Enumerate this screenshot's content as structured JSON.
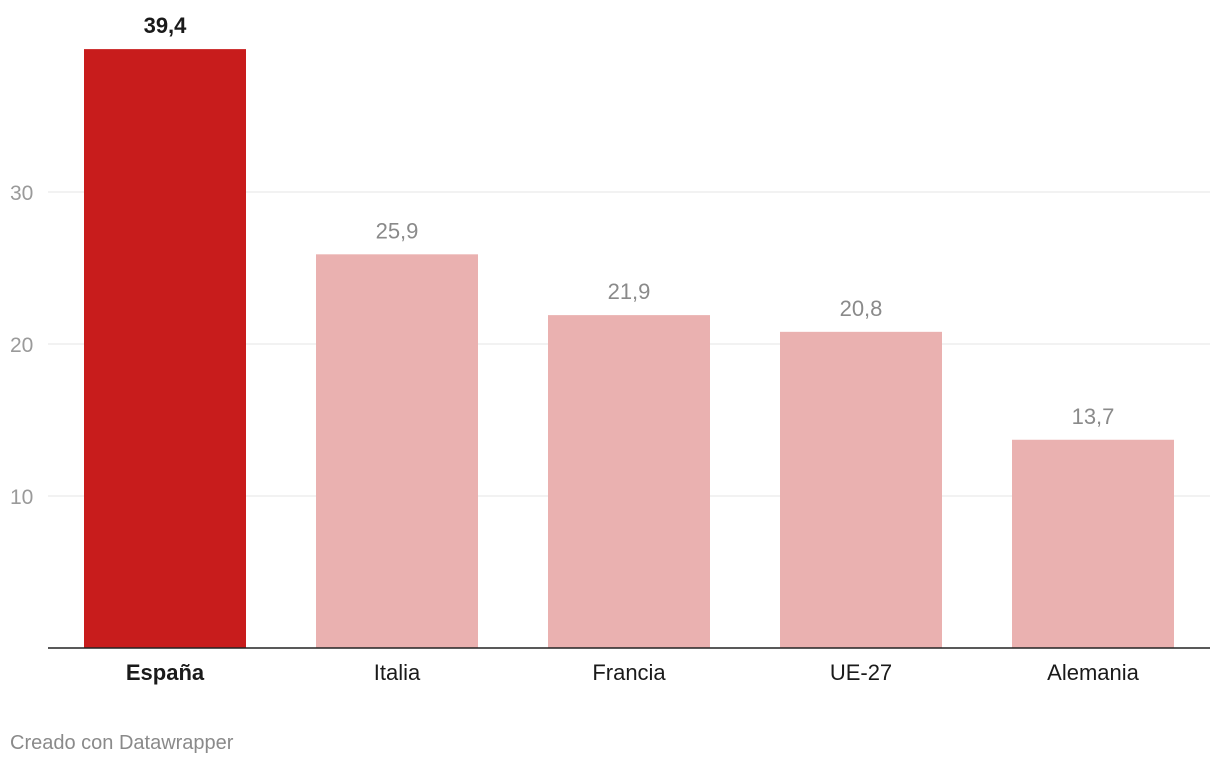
{
  "chart_data": {
    "type": "bar",
    "categories": [
      "España",
      "Italia",
      "Francia",
      "UE-27",
      "Alemania"
    ],
    "values": [
      39.4,
      25.9,
      21.9,
      20.8,
      13.7
    ],
    "value_labels": [
      "39,4",
      "25,9",
      "21,9",
      "20,8",
      "13,7"
    ],
    "highlight_index": 0,
    "ylim": [
      0,
      40
    ],
    "yticks": [
      10,
      20,
      30
    ],
    "ytick_labels": [
      "10",
      "20",
      "30"
    ],
    "grid": true,
    "colors": {
      "highlight": "#c81c1c",
      "bar": "#eab1b0",
      "grid": "#e5e5e5",
      "axis": "#222222",
      "tick_text": "#9a9a9a",
      "value_text": "#8a8a8a",
      "highlight_text": "#1a1a1a"
    }
  },
  "footer": {
    "credit": "Creado con Datawrapper"
  }
}
